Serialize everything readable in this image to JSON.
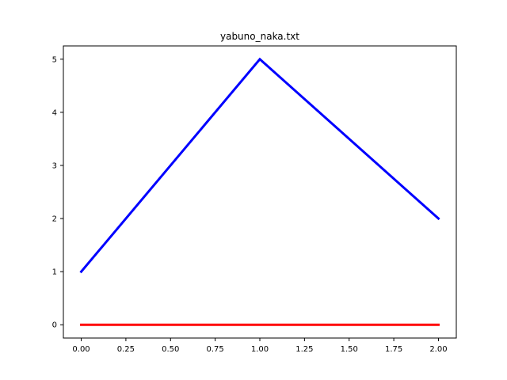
{
  "chart_data": {
    "type": "line",
    "title": "yabuno_naka.txt",
    "xlabel": "",
    "ylabel": "",
    "xlim": [
      -0.1,
      2.1
    ],
    "ylim": [
      -0.25,
      5.25
    ],
    "x_ticks": [
      0.0,
      0.25,
      0.5,
      0.75,
      1.0,
      1.25,
      1.5,
      1.75,
      2.0
    ],
    "x_tick_labels": [
      "0.00",
      "0.25",
      "0.50",
      "0.75",
      "1.00",
      "1.25",
      "1.50",
      "1.75",
      "2.00"
    ],
    "y_ticks": [
      0,
      1,
      2,
      3,
      4,
      5
    ],
    "y_tick_labels": [
      "0",
      "1",
      "2",
      "3",
      "4",
      "5"
    ],
    "grid": false,
    "series": [
      {
        "color": "#0000ff",
        "x": [
          0,
          1,
          2
        ],
        "values": [
          1,
          5,
          2
        ]
      },
      {
        "color": "#ff0000",
        "x": [
          0,
          1,
          2
        ],
        "values": [
          0,
          0,
          0
        ]
      }
    ]
  }
}
